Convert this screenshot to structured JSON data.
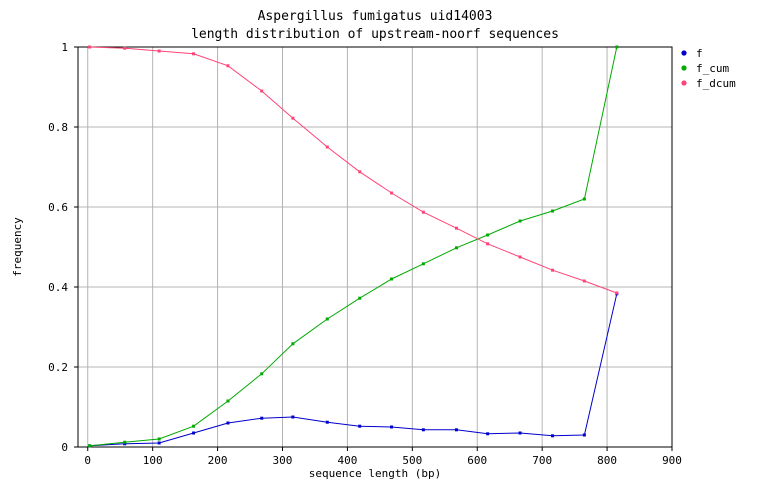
{
  "chart_data": {
    "type": "line",
    "title": "Aspergillus fumigatus uid14003",
    "subtitle": "length distribution of upstream-noorf sequences",
    "xlabel": "sequence length (bp)",
    "ylabel": "frequency",
    "xlim": [
      -15,
      900
    ],
    "ylim": [
      0,
      1
    ],
    "xticks": [
      0,
      100,
      200,
      300,
      400,
      500,
      600,
      700,
      800,
      900
    ],
    "yticks": [
      0,
      0.2,
      0.4,
      0.6,
      0.8,
      1
    ],
    "ytick_labels": [
      "0",
      "0.2",
      "0.4",
      "0.6",
      "0.8",
      "1"
    ],
    "grid": true,
    "legend_position": "right",
    "x": [
      3,
      57,
      110,
      163,
      216,
      268,
      316,
      369,
      419,
      468,
      517,
      568,
      616,
      666,
      716,
      765,
      815
    ],
    "series": [
      {
        "name": "f",
        "color": "#0000cc",
        "values": [
          0.003,
          0.008,
          0.01,
          0.035,
          0.06,
          0.072,
          0.075,
          0.062,
          0.052,
          0.05,
          0.043,
          0.043,
          0.033,
          0.035,
          0.028,
          0.03,
          0.383
        ]
      },
      {
        "name": "f_cum",
        "color": "#00aa00",
        "values": [
          0.003,
          0.012,
          0.02,
          0.052,
          0.115,
          0.183,
          0.258,
          0.32,
          0.372,
          0.42,
          0.458,
          0.498,
          0.53,
          0.565,
          0.59,
          0.62,
          1.0
        ]
      },
      {
        "name": "f_dcum",
        "color": "#ff4477",
        "values": [
          1.0,
          0.997,
          0.99,
          0.983,
          0.953,
          0.89,
          0.822,
          0.75,
          0.688,
          0.635,
          0.587,
          0.547,
          0.508,
          0.475,
          0.442,
          0.415,
          0.385
        ]
      }
    ]
  }
}
